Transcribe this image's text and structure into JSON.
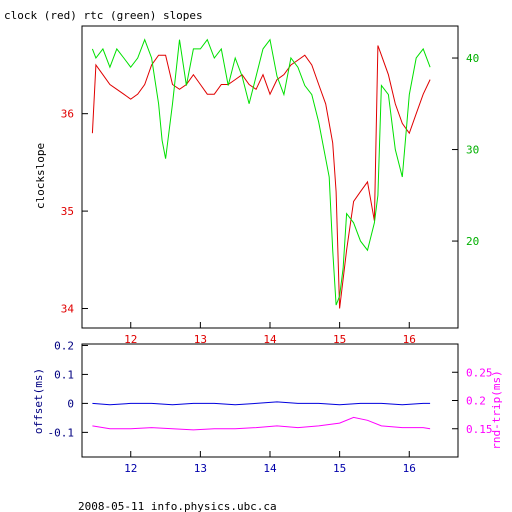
{
  "title": "clock (red) rtc (green) slopes",
  "footer": "2008-05-11 info.physics.ubc.ca",
  "colors": {
    "clock": "#e00000",
    "rtc": "#00e000",
    "offset": "#0000dd",
    "roundtrip": "#ff00ff",
    "frame": "#000000"
  },
  "chart_data": [
    {
      "type": "line",
      "title": "clock (red) rtc (green) slopes",
      "ylabel": "clockslope",
      "y2label": "",
      "xlim": [
        11.3,
        16.7
      ],
      "ylim": [
        33.8,
        36.9
      ],
      "y2lim": [
        10.5,
        43.5
      ],
      "xticks": [
        "12",
        "13",
        "14",
        "15",
        "16"
      ],
      "yticks": [
        "34",
        "35",
        "36"
      ],
      "y2ticks": [
        "20",
        "30",
        "40"
      ],
      "grid": false,
      "series": [
        {
          "name": "clock",
          "axis": "left",
          "color": "#e00000",
          "x": [
            11.45,
            11.5,
            11.6,
            11.7,
            11.8,
            11.9,
            12.0,
            12.1,
            12.2,
            12.3,
            12.4,
            12.5,
            12.6,
            12.7,
            12.8,
            12.9,
            13.0,
            13.1,
            13.2,
            13.3,
            13.4,
            13.5,
            13.6,
            13.7,
            13.8,
            13.9,
            14.0,
            14.1,
            14.2,
            14.3,
            14.4,
            14.5,
            14.6,
            14.7,
            14.8,
            14.85,
            14.9,
            14.95,
            15.0,
            15.05,
            15.1,
            15.2,
            15.3,
            15.4,
            15.5,
            15.55,
            15.6,
            15.7,
            15.8,
            15.9,
            16.0,
            16.1,
            16.2,
            16.3
          ],
          "y": [
            35.8,
            36.5,
            36.4,
            36.3,
            36.25,
            36.2,
            36.15,
            36.2,
            36.3,
            36.5,
            36.6,
            36.6,
            36.3,
            36.25,
            36.3,
            36.4,
            36.3,
            36.2,
            36.2,
            36.3,
            36.3,
            36.35,
            36.4,
            36.3,
            36.25,
            36.4,
            36.2,
            36.35,
            36.4,
            36.5,
            36.55,
            36.6,
            36.5,
            36.3,
            36.1,
            35.9,
            35.7,
            35.2,
            34.0,
            34.3,
            34.6,
            35.1,
            35.2,
            35.3,
            34.9,
            36.7,
            36.6,
            36.4,
            36.1,
            35.9,
            35.8,
            36.0,
            36.2,
            36.35
          ]
        },
        {
          "name": "rtc",
          "axis": "right",
          "color": "#00e000",
          "x": [
            11.45,
            11.5,
            11.6,
            11.7,
            11.8,
            11.9,
            12.0,
            12.1,
            12.2,
            12.3,
            12.4,
            12.45,
            12.5,
            12.6,
            12.7,
            12.8,
            12.9,
            13.0,
            13.1,
            13.2,
            13.3,
            13.4,
            13.5,
            13.6,
            13.7,
            13.8,
            13.9,
            14.0,
            14.1,
            14.2,
            14.3,
            14.4,
            14.5,
            14.6,
            14.7,
            14.8,
            14.85,
            14.9,
            14.95,
            15.0,
            15.05,
            15.1,
            15.2,
            15.3,
            15.4,
            15.5,
            15.55,
            15.6,
            15.7,
            15.8,
            15.9,
            16.0,
            16.1,
            16.2,
            16.3
          ],
          "y": [
            41,
            40,
            41,
            39,
            41,
            40,
            39,
            40,
            42,
            40,
            35,
            31,
            29,
            35,
            42,
            37,
            41,
            41,
            42,
            40,
            41,
            37,
            40,
            38,
            35,
            38,
            41,
            42,
            38,
            36,
            40,
            39,
            37,
            36,
            33,
            29,
            27,
            19,
            13,
            14,
            17,
            23,
            22,
            20,
            19,
            22,
            25,
            37,
            36,
            30,
            27,
            36,
            40,
            41,
            39
          ]
        }
      ]
    },
    {
      "type": "line",
      "ylabel": "offset(ms)",
      "y2label": "rnd-trip(ms)",
      "xlim": [
        11.3,
        16.7
      ],
      "ylim": [
        -0.185,
        0.205
      ],
      "y2lim": [
        0.1,
        0.3
      ],
      "xticks": [
        "12",
        "13",
        "14",
        "15",
        "16"
      ],
      "yticks": [
        "-0.1",
        "0",
        "0.1",
        "0.2"
      ],
      "y2ticks": [
        "0.15",
        "0.2",
        "0.25"
      ],
      "grid": false,
      "series": [
        {
          "name": "offset",
          "axis": "left",
          "color": "#0000dd",
          "x": [
            11.45,
            11.7,
            12.0,
            12.3,
            12.6,
            12.9,
            13.2,
            13.5,
            13.8,
            14.1,
            14.4,
            14.7,
            15.0,
            15.3,
            15.6,
            15.9,
            16.2,
            16.3
          ],
          "y": [
            0.0,
            -0.005,
            0.0,
            0.0,
            -0.005,
            0.0,
            0.0,
            -0.005,
            0.0,
            0.005,
            0.0,
            0.0,
            -0.005,
            0.0,
            0.0,
            -0.005,
            0.0,
            0.0
          ]
        },
        {
          "name": "roundtrip",
          "axis": "right",
          "color": "#ff00ff",
          "x": [
            11.45,
            11.7,
            12.0,
            12.3,
            12.6,
            12.9,
            13.2,
            13.5,
            13.8,
            14.1,
            14.4,
            14.7,
            15.0,
            15.2,
            15.4,
            15.6,
            15.9,
            16.2,
            16.3
          ],
          "y": [
            0.155,
            0.15,
            0.15,
            0.152,
            0.15,
            0.148,
            0.15,
            0.15,
            0.152,
            0.155,
            0.152,
            0.155,
            0.16,
            0.17,
            0.165,
            0.155,
            0.152,
            0.152,
            0.15
          ]
        }
      ]
    }
  ]
}
